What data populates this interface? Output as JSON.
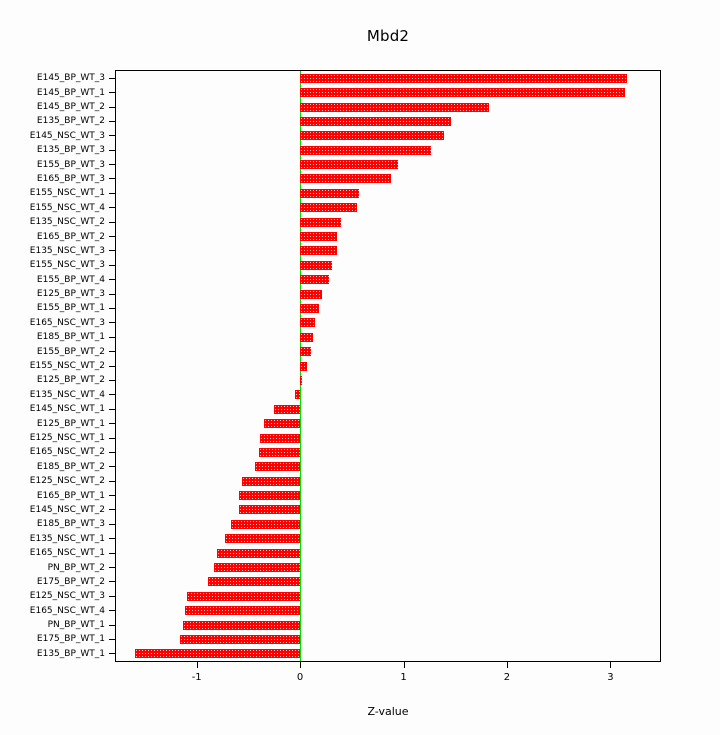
{
  "chart_data": {
    "type": "bar",
    "orientation": "horizontal",
    "title": "Mbd2",
    "xlabel": "Z-value",
    "xlim": [
      -1.78,
      3.48
    ],
    "xticks": [
      -1,
      0,
      1,
      2,
      3
    ],
    "grid": false,
    "legend": false,
    "bar_color": "#ff0000",
    "zero_line_color": "#00dd00",
    "frame_color": "#000000",
    "categories": [
      "E145_BP_WT_3",
      "E145_BP_WT_1",
      "E145_BP_WT_2",
      "E135_BP_WT_2",
      "E145_NSC_WT_3",
      "E135_BP_WT_3",
      "E155_BP_WT_3",
      "E165_BP_WT_3",
      "E155_NSC_WT_1",
      "E155_NSC_WT_4",
      "E135_NSC_WT_2",
      "E165_BP_WT_2",
      "E135_NSC_WT_3",
      "E155_NSC_WT_3",
      "E155_BP_WT_4",
      "E125_BP_WT_3",
      "E155_BP_WT_1",
      "E165_NSC_WT_3",
      "E185_BP_WT_1",
      "E155_BP_WT_2",
      "E155_NSC_WT_2",
      "E125_BP_WT_2",
      "E135_NSC_WT_4",
      "E145_NSC_WT_1",
      "E125_BP_WT_1",
      "E125_NSC_WT_1",
      "E165_NSC_WT_2",
      "E185_BP_WT_2",
      "E125_NSC_WT_2",
      "E165_BP_WT_1",
      "E145_NSC_WT_2",
      "E185_BP_WT_3",
      "E135_NSC_WT_1",
      "E165_NSC_WT_1",
      "PN_BP_WT_2",
      "E175_BP_WT_2",
      "E125_NSC_WT_3",
      "E165_NSC_WT_4",
      "PN_BP_WT_1",
      "E175_BP_WT_1",
      "E135_BP_WT_1"
    ],
    "values": [
      3.16,
      3.14,
      1.83,
      1.46,
      1.39,
      1.27,
      0.95,
      0.88,
      0.57,
      0.55,
      0.4,
      0.36,
      0.36,
      0.31,
      0.28,
      0.21,
      0.18,
      0.14,
      0.13,
      0.11,
      0.07,
      0.02,
      -0.05,
      -0.25,
      -0.35,
      -0.39,
      -0.4,
      -0.44,
      -0.56,
      -0.59,
      -0.59,
      -0.67,
      -0.73,
      -0.8,
      -0.83,
      -0.89,
      -1.09,
      -1.11,
      -1.13,
      -1.16,
      -1.6
    ]
  }
}
